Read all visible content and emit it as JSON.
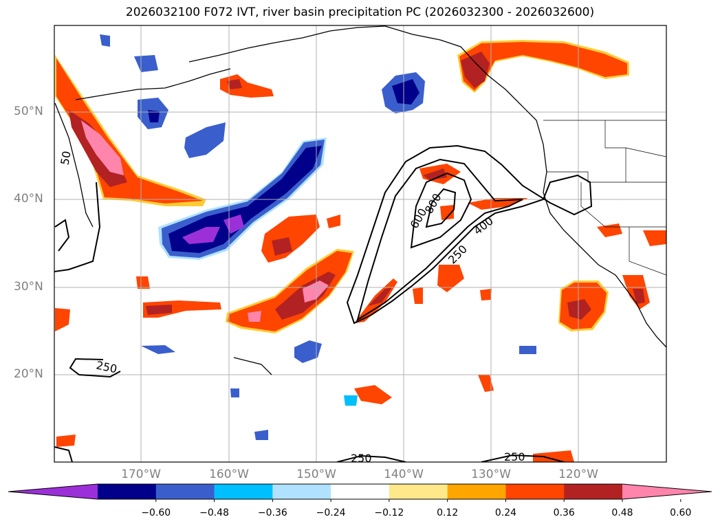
{
  "title": "2026032100 F072 IVT, river basin precipitation PC (2026032300 - 2026032600)",
  "lat_labels": [
    "50°N",
    "40°N",
    "30°N",
    "20°N"
  ],
  "lon_labels": [
    "170°W",
    "160°W",
    "150°W",
    "140°W",
    "130°W",
    "120°W"
  ],
  "contour_labels": [
    "600",
    "800",
    "400",
    "250",
    "250",
    "250",
    "250",
    "50"
  ],
  "colorbar": {
    "ticks": [
      "−0.60",
      "−0.48",
      "−0.36",
      "−0.24",
      "−0.12",
      "0.12",
      "0.24",
      "0.36",
      "0.48",
      "0.60"
    ],
    "colors": [
      "#9b30d8",
      "#00008b",
      "#3a5fcd",
      "#00bfff",
      "#b0e2ff",
      "#ffffff",
      "#ffe88a",
      "#ffa500",
      "#ff4500",
      "#b22222",
      "#ff85ad"
    ]
  },
  "map_extent": {
    "lon": [
      -180,
      -110
    ],
    "lat": [
      10,
      60
    ]
  },
  "gridlines": true
}
